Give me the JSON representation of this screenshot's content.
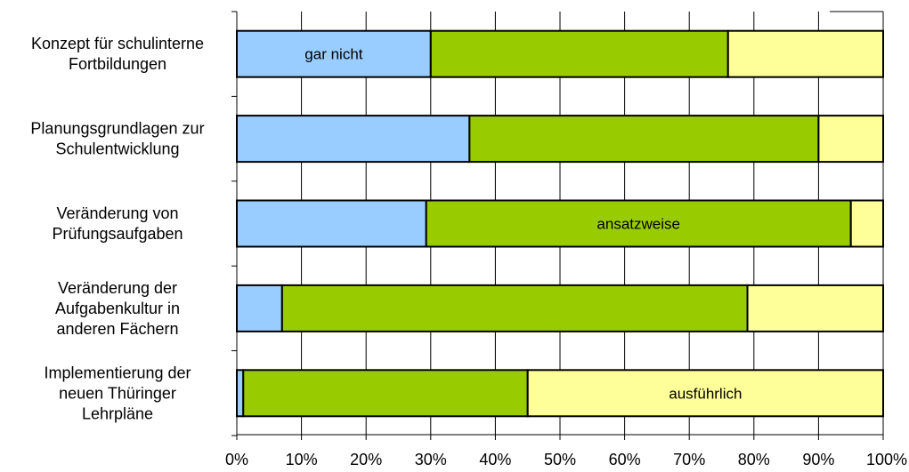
{
  "chart_data": {
    "type": "bar",
    "orientation": "horizontal",
    "stacked": "percent",
    "categories": [
      [
        "Konzept für schulinterne",
        "Fortbildungen"
      ],
      [
        "Planungsgrundlagen zur",
        "Schulentwicklung"
      ],
      [
        "Veränderung von",
        "Prüfungsaufgaben"
      ],
      [
        "Veränderung der",
        "Aufgabenkultur in",
        "anderen Fächern"
      ],
      [
        "Implementierung der",
        "neuen Thüringer",
        "Lehrpläne"
      ]
    ],
    "series": [
      {
        "name": "gar nicht",
        "color": "#99ccff",
        "values": [
          30,
          36,
          29.3,
          7,
          1
        ]
      },
      {
        "name": "ansatzweise",
        "color": "#99cc00",
        "values": [
          46,
          54,
          65.7,
          72,
          44
        ]
      },
      {
        "name": "ausführlich",
        "color": "#ffff99",
        "values": [
          24,
          10,
          5,
          21,
          55
        ]
      }
    ],
    "inline_labels": [
      {
        "text": "gar nicht",
        "series": 0,
        "category": 0
      },
      {
        "text": "ansatzweise",
        "series": 1,
        "category": 2
      },
      {
        "text": "ausführlich",
        "series": 2,
        "category": 4
      }
    ],
    "x_ticks": [
      "0%",
      "10%",
      "20%",
      "30%",
      "40%",
      "50%",
      "60%",
      "70%",
      "80%",
      "90%",
      "100%"
    ],
    "xlim": [
      0,
      100
    ],
    "grid": "vertical",
    "legend": "none"
  }
}
